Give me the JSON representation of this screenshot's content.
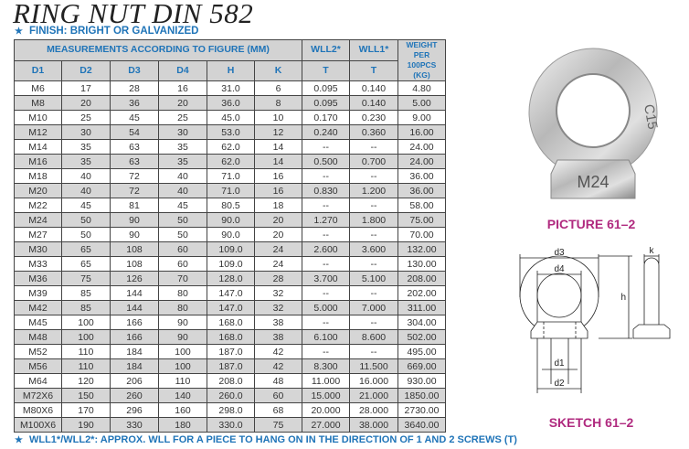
{
  "title": "RING NUT DIN 582",
  "finish": "FINISH: BRIGHT OR GALVANIZED",
  "table": {
    "group_header": "MEASUREMENTS ACCORDING TO FIGURE (MM)",
    "wll2_header": "WLL2*",
    "wll1_header": "WLL1*",
    "weight_header": [
      "WEIGHT",
      "PER 100PCS",
      "(KG)"
    ],
    "columns": [
      "D1",
      "D2",
      "D3",
      "D4",
      "H",
      "K",
      "T",
      "T"
    ],
    "rows": [
      [
        "M6",
        "17",
        "28",
        "16",
        "31.0",
        "6",
        "0.095",
        "0.140",
        "4.80"
      ],
      [
        "M8",
        "20",
        "36",
        "20",
        "36.0",
        "8",
        "0.095",
        "0.140",
        "5.00"
      ],
      [
        "M10",
        "25",
        "45",
        "25",
        "45.0",
        "10",
        "0.170",
        "0.230",
        "9.00"
      ],
      [
        "M12",
        "30",
        "54",
        "30",
        "53.0",
        "12",
        "0.240",
        "0.360",
        "16.00"
      ],
      [
        "M14",
        "35",
        "63",
        "35",
        "62.0",
        "14",
        "--",
        "--",
        "24.00"
      ],
      [
        "M16",
        "35",
        "63",
        "35",
        "62.0",
        "14",
        "0.500",
        "0.700",
        "24.00"
      ],
      [
        "M18",
        "40",
        "72",
        "40",
        "71.0",
        "16",
        "--",
        "--",
        "36.00"
      ],
      [
        "M20",
        "40",
        "72",
        "40",
        "71.0",
        "16",
        "0.830",
        "1.200",
        "36.00"
      ],
      [
        "M22",
        "45",
        "81",
        "45",
        "80.5",
        "18",
        "--",
        "--",
        "58.00"
      ],
      [
        "M24",
        "50",
        "90",
        "50",
        "90.0",
        "20",
        "1.270",
        "1.800",
        "75.00"
      ],
      [
        "M27",
        "50",
        "90",
        "50",
        "90.0",
        "20",
        "--",
        "--",
        "70.00"
      ],
      [
        "M30",
        "65",
        "108",
        "60",
        "109.0",
        "24",
        "2.600",
        "3.600",
        "132.00"
      ],
      [
        "M33",
        "65",
        "108",
        "60",
        "109.0",
        "24",
        "--",
        "--",
        "130.00"
      ],
      [
        "M36",
        "75",
        "126",
        "70",
        "128.0",
        "28",
        "3.700",
        "5.100",
        "208.00"
      ],
      [
        "M39",
        "85",
        "144",
        "80",
        "147.0",
        "32",
        "--",
        "--",
        "202.00"
      ],
      [
        "M42",
        "85",
        "144",
        "80",
        "147.0",
        "32",
        "5.000",
        "7.000",
        "311.00"
      ],
      [
        "M45",
        "100",
        "166",
        "90",
        "168.0",
        "38",
        "--",
        "--",
        "304.00"
      ],
      [
        "M48",
        "100",
        "166",
        "90",
        "168.0",
        "38",
        "6.100",
        "8.600",
        "502.00"
      ],
      [
        "M52",
        "110",
        "184",
        "100",
        "187.0",
        "42",
        "--",
        "--",
        "495.00"
      ],
      [
        "M56",
        "110",
        "184",
        "100",
        "187.0",
        "42",
        "8.300",
        "11.500",
        "669.00"
      ],
      [
        "M64",
        "120",
        "206",
        "110",
        "208.0",
        "48",
        "11.000",
        "16.000",
        "930.00"
      ],
      [
        "M72X6",
        "150",
        "260",
        "140",
        "260.0",
        "60",
        "15.000",
        "21.000",
        "1850.00"
      ],
      [
        "M80X6",
        "170",
        "296",
        "160",
        "298.0",
        "68",
        "20.000",
        "28.000",
        "2730.00"
      ],
      [
        "M100X6",
        "190",
        "330",
        "180",
        "330.0",
        "75",
        "27.000",
        "38.000",
        "3640.00"
      ]
    ]
  },
  "footnote": "WLL1*/WLL2*: APPROX. WLL FOR A PIECE TO HANG ON IN THE DIRECTION OF 1 AND 2 SCREWS (T)",
  "picture_label": "PICTURE 61–2",
  "sketch_label": "SKETCH 61–2",
  "nut_marking": "M24",
  "nut_marking_side": "C15",
  "sketch_dims": {
    "d3": "d3",
    "d4": "d4",
    "d1": "d1",
    "d2": "d2",
    "h": "h",
    "k": "k"
  },
  "colors": {
    "header_text": "#1f74b8",
    "label": "#b02a7f",
    "alt_row": "#d6d6d6"
  }
}
